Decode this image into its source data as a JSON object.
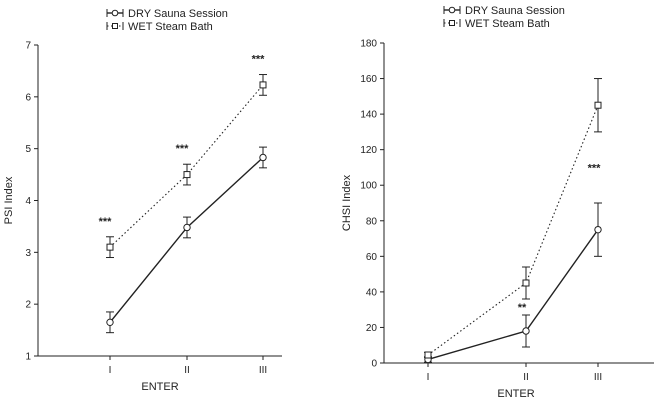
{
  "chart_data": [
    {
      "type": "line",
      "title": "",
      "xlabel": "ENTER",
      "ylabel": "PSI Index",
      "categories": [
        "I",
        "II",
        "III"
      ],
      "ylim": [
        1,
        7
      ],
      "yticks": [
        1,
        2,
        3,
        4,
        5,
        6,
        7
      ],
      "grid": false,
      "legend_position": "top-center",
      "series": [
        {
          "name": "DRY Sauna Session",
          "marker": "circle",
          "line": "solid",
          "values": [
            1.65,
            3.48,
            4.83
          ],
          "error": [
            0.2,
            0.2,
            0.2
          ]
        },
        {
          "name": "WET Steam Bath",
          "marker": "square",
          "line": "dotted",
          "values": [
            3.1,
            4.5,
            6.23
          ],
          "error": [
            0.2,
            0.2,
            0.2
          ]
        }
      ],
      "annotations": [
        "***",
        "***",
        "***"
      ]
    },
    {
      "type": "line",
      "title": "",
      "xlabel": "ENTER",
      "ylabel": "CHSI Index",
      "categories": [
        "I",
        "II",
        "III"
      ],
      "ylim": [
        0,
        180
      ],
      "yticks": [
        0,
        20,
        40,
        60,
        80,
        100,
        120,
        140,
        160,
        180
      ],
      "grid": false,
      "legend_position": "top-center",
      "series": [
        {
          "name": "DRY Sauna Session",
          "marker": "circle",
          "line": "solid",
          "values": [
            2,
            18,
            75
          ],
          "error": [
            1.5,
            9,
            15
          ]
        },
        {
          "name": "WET Steam Bath",
          "marker": "square",
          "line": "dotted",
          "values": [
            4.5,
            45,
            145
          ],
          "error": [
            1.5,
            9,
            15
          ]
        }
      ],
      "annotations": [
        "",
        "**",
        "***"
      ]
    }
  ]
}
